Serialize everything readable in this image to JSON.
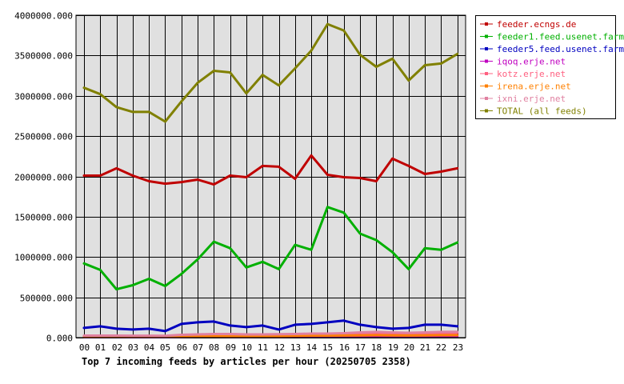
{
  "chart_data": {
    "type": "line",
    "title": "Top 7 incoming feeds by articles per hour (20250705 2358)",
    "xlabel": "",
    "ylabel": "",
    "categories": [
      "00",
      "01",
      "02",
      "03",
      "04",
      "05",
      "06",
      "07",
      "08",
      "09",
      "10",
      "11",
      "12",
      "13",
      "14",
      "15",
      "16",
      "17",
      "18",
      "19",
      "20",
      "21",
      "22",
      "23"
    ],
    "ylim": [
      0,
      4000000
    ],
    "yticks": [
      {
        "value": 0,
        "label": "0.000"
      },
      {
        "value": 500000,
        "label": "500000.000"
      },
      {
        "value": 1000000,
        "label": "1000000.000"
      },
      {
        "value": 1500000,
        "label": "1500000.000"
      },
      {
        "value": 2000000,
        "label": "2000000.000"
      },
      {
        "value": 2500000,
        "label": "2500000.000"
      },
      {
        "value": 3000000,
        "label": "3000000.000"
      },
      {
        "value": 3500000,
        "label": "3500000.000"
      },
      {
        "value": 4000000,
        "label": "4000000.000"
      }
    ],
    "grid": true,
    "legend_position": "right",
    "plot_background": "#e0e0e0",
    "series": [
      {
        "name": "TOTAL (all feeds)",
        "color": "#808000",
        "values": [
          3100000,
          3020000,
          2860000,
          2800000,
          2800000,
          2680000,
          2930000,
          3160000,
          3310000,
          3290000,
          3030000,
          3260000,
          3130000,
          3340000,
          3560000,
          3890000,
          3810000,
          3510000,
          3360000,
          3460000,
          3190000,
          3380000,
          3400000,
          3520000
        ]
      },
      {
        "name": "feeder.ecngs.de",
        "color": "#c00000",
        "values": [
          2010000,
          2010000,
          2100000,
          2010000,
          1940000,
          1910000,
          1930000,
          1960000,
          1900000,
          2010000,
          1990000,
          2130000,
          2120000,
          1970000,
          2260000,
          2020000,
          1990000,
          1980000,
          1940000,
          2220000,
          2130000,
          2030000,
          2060000,
          2100000
        ]
      },
      {
        "name": "feeder1.feed.usenet.farm",
        "color": "#00b000",
        "values": [
          920000,
          840000,
          600000,
          650000,
          730000,
          640000,
          790000,
          970000,
          1190000,
          1110000,
          870000,
          940000,
          850000,
          1150000,
          1090000,
          1620000,
          1550000,
          1290000,
          1210000,
          1060000,
          850000,
          1110000,
          1090000,
          1180000
        ]
      },
      {
        "name": "feeder5.feed.usenet.farm",
        "color": "#0000c0",
        "values": [
          120000,
          140000,
          110000,
          100000,
          110000,
          80000,
          170000,
          190000,
          200000,
          150000,
          130000,
          150000,
          100000,
          160000,
          170000,
          190000,
          210000,
          160000,
          130000,
          110000,
          120000,
          160000,
          160000,
          140000
        ]
      },
      {
        "name": "iqoq.erje.net",
        "color": "#c000c0",
        "values": [
          8000,
          9000,
          9000,
          8000,
          8000,
          7000,
          9000,
          10000,
          10000,
          9000,
          9000,
          10000,
          9000,
          10000,
          10000,
          11000,
          12000,
          11000,
          11000,
          10000,
          10000,
          11000,
          11000,
          11000
        ]
      },
      {
        "name": "kotz.erje.net",
        "color": "#ff6080",
        "values": [
          20000,
          20000,
          20000,
          20000,
          20000,
          18000,
          30000,
          35000,
          40000,
          40000,
          35000,
          35000,
          38000,
          42000,
          45000,
          45000,
          48000,
          55000,
          60000,
          55000,
          52000,
          55000,
          58000,
          60000
        ]
      },
      {
        "name": "irena.erje.net",
        "color": "#ff8000",
        "values": [
          15000,
          15000,
          15000,
          14000,
          14000,
          13000,
          18000,
          20000,
          20000,
          20000,
          18000,
          20000,
          20000,
          22000,
          25000,
          25000,
          26000,
          28000,
          30000,
          28000,
          26000,
          28000,
          30000,
          30000
        ]
      },
      {
        "name": "ixni.erje.net",
        "color": "#e080a0",
        "values": [
          25000,
          25000,
          25000,
          24000,
          24000,
          22000,
          35000,
          40000,
          45000,
          45000,
          40000,
          40000,
          42000,
          45000,
          50000,
          50000,
          55000,
          65000,
          70000,
          65000,
          60000,
          65000,
          70000,
          72000
        ]
      }
    ],
    "legend_order": [
      "feeder.ecngs.de",
      "feeder1.feed.usenet.farm",
      "feeder5.feed.usenet.farm",
      "iqoq.erje.net",
      "kotz.erje.net",
      "irena.erje.net",
      "ixni.erje.net",
      "TOTAL (all feeds)"
    ]
  }
}
